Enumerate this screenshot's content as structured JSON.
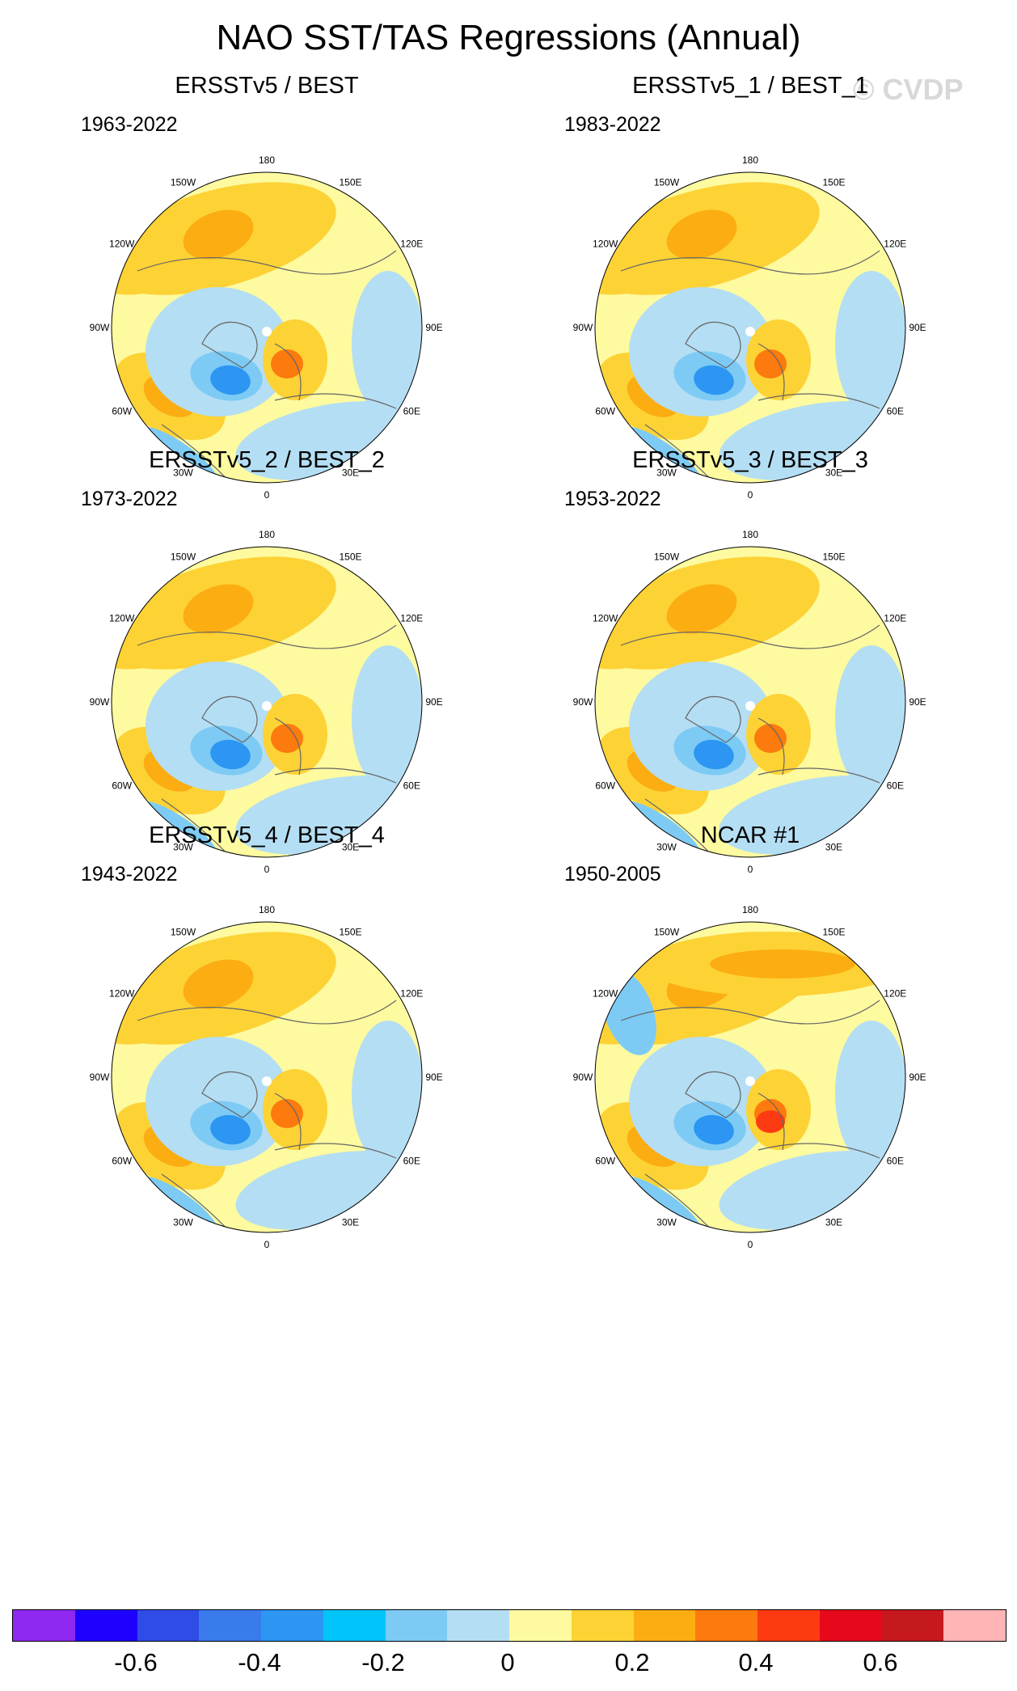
{
  "title": "NAO SST/TAS Regressions (Annual)",
  "watermark": "© CVDP",
  "lon_labels": [
    "180",
    "150E",
    "120E",
    "90E",
    "60E",
    "30E",
    "0",
    "30W",
    "60W",
    "90W",
    "120W",
    "150W"
  ],
  "panels": [
    {
      "title": "ERSSTv5 / BEST",
      "years": "1963-2022"
    },
    {
      "title": "ERSSTv5_1 / BEST_1",
      "years": "1983-2022"
    },
    {
      "title": "ERSSTv5_2 / BEST_2",
      "years": "1973-2022"
    },
    {
      "title": "ERSSTv5_3 / BEST_3",
      "years": "1953-2022"
    },
    {
      "title": "ERSSTv5_4 / BEST_4",
      "years": "1943-2022"
    },
    {
      "title": "NCAR #1",
      "years": "1950-2005"
    }
  ],
  "colorbar": {
    "colors": [
      "#8f28f0",
      "#1e00ff",
      "#2f4de6",
      "#3a7bec",
      "#2c96f2",
      "#00c4fa",
      "#7dcbf5",
      "#b4def3",
      "#fdfaa0",
      "#fdd235",
      "#fbad12",
      "#fc7a0e",
      "#fe3a13",
      "#e6091b",
      "#c6191e",
      "#ffb5b5"
    ],
    "labels": [
      "-0.6",
      "-0.4",
      "-0.2",
      "0",
      "0.2",
      "0.4",
      "0.6"
    ]
  },
  "palette": {
    "cyan_light": "#b4def3",
    "cyan_mid": "#7dcbf5",
    "blue": "#2c96f2",
    "blue_dark": "#3a7bec",
    "yellow_light": "#fdfaa0",
    "yellow": "#fdd235",
    "orange": "#fbad12",
    "orange_dark": "#fc7a0e",
    "red": "#fe3a13"
  }
}
